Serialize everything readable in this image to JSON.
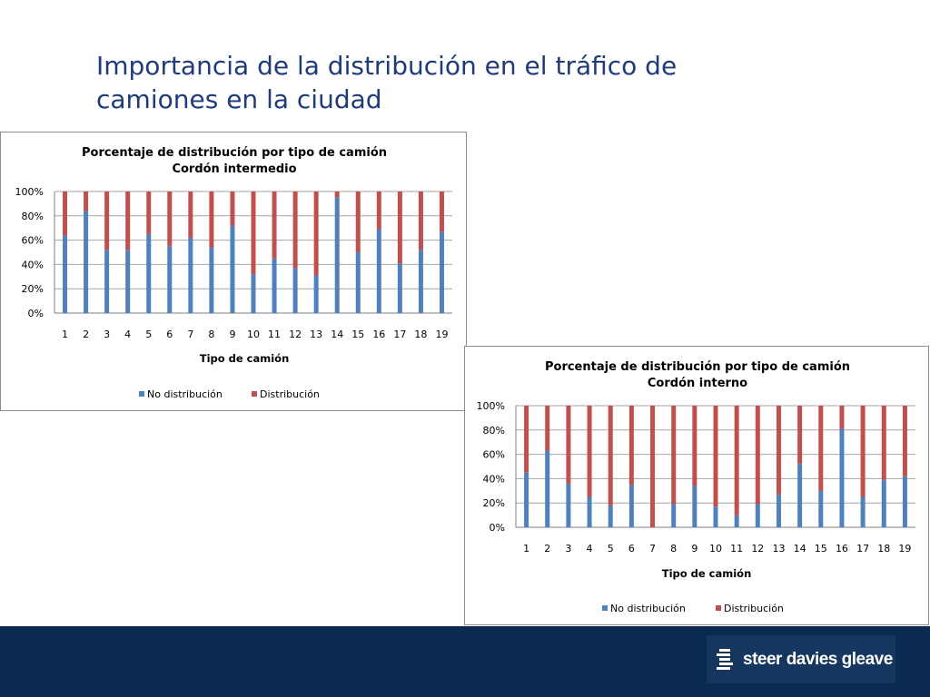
{
  "slide": {
    "title": "Importancia de la distribución en el tráfico de camiones en la ciudad"
  },
  "footer": {
    "logo_text": "steer davies gleave",
    "band_color": "#0b2a4f"
  },
  "chart_data": [
    {
      "type": "bar",
      "stacked": true,
      "percent": true,
      "title": "Porcentaje de distribución por tipo de camión",
      "subtitle": "Cordón intermedio",
      "xlabel": "Tipo de camión",
      "ylabel": "",
      "ylim": [
        0,
        100
      ],
      "yticks": [
        "0%",
        "20%",
        "40%",
        "60%",
        "80%",
        "100%"
      ],
      "grid": true,
      "legend": "bottom",
      "categories": [
        "1",
        "2",
        "3",
        "4",
        "5",
        "6",
        "7",
        "8",
        "9",
        "10",
        "11",
        "12",
        "13",
        "14",
        "15",
        "16",
        "17",
        "18",
        "19"
      ],
      "series": [
        {
          "name": "No distribución",
          "color": "#4f81bd",
          "values": [
            64,
            84,
            52,
            52,
            65,
            55,
            62,
            54,
            72,
            32,
            45,
            37,
            31,
            95,
            50,
            69,
            41,
            52,
            67
          ]
        },
        {
          "name": "Distribución",
          "color": "#c0504d",
          "values": [
            36,
            16,
            48,
            48,
            35,
            45,
            38,
            46,
            28,
            68,
            55,
            63,
            69,
            5,
            50,
            31,
            59,
            48,
            33
          ]
        }
      ]
    },
    {
      "type": "bar",
      "stacked": true,
      "percent": true,
      "title": "Porcentaje de distribución por tipo de camión",
      "subtitle": "Cordón interno",
      "xlabel": "Tipo de camión",
      "ylabel": "",
      "ylim": [
        0,
        100
      ],
      "yticks": [
        "0%",
        "20%",
        "40%",
        "60%",
        "80%",
        "100%"
      ],
      "grid": true,
      "legend": "bottom",
      "categories": [
        "1",
        "2",
        "3",
        "4",
        "5",
        "6",
        "7",
        "8",
        "9",
        "10",
        "11",
        "12",
        "13",
        "14",
        "15",
        "16",
        "17",
        "18",
        "19"
      ],
      "series": [
        {
          "name": "No distribución",
          "color": "#4f81bd",
          "values": [
            45,
            63,
            36,
            25,
            18,
            35,
            0,
            19,
            34,
            17,
            10,
            19,
            27,
            52,
            30,
            81,
            25,
            39,
            42
          ]
        },
        {
          "name": "Distribución",
          "color": "#c0504d",
          "values": [
            55,
            37,
            64,
            75,
            82,
            65,
            100,
            81,
            66,
            83,
            90,
            81,
            73,
            48,
            70,
            19,
            75,
            61,
            58
          ]
        }
      ]
    }
  ]
}
